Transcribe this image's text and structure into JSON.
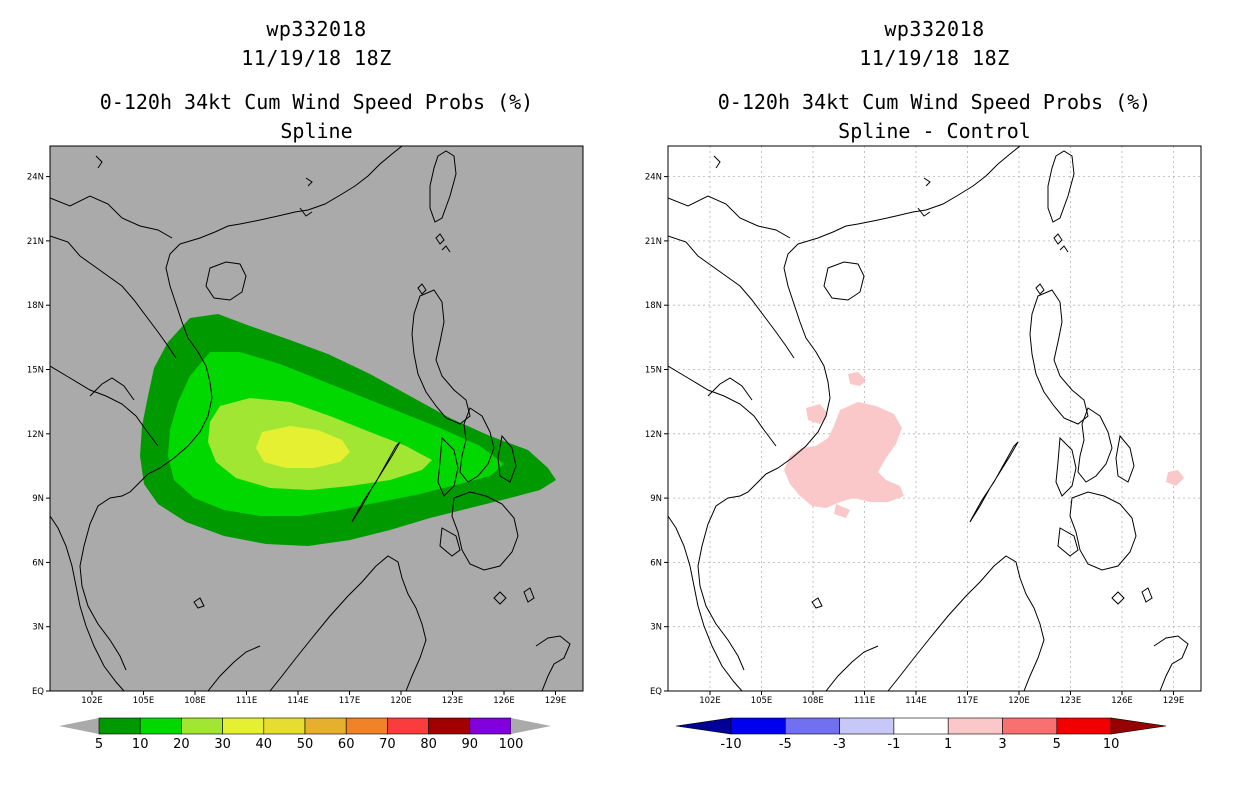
{
  "left": {
    "title_line1": "wp332018",
    "title_line2": "11/19/18 18Z",
    "subtitle_line1": "0-120h 34kt Cum Wind Speed Probs (%)",
    "subtitle_line2": "Spline",
    "legend_labels": [
      "5",
      "10",
      "20",
      "30",
      "40",
      "50",
      "60",
      "70",
      "80",
      "90",
      "100"
    ],
    "legend_colors": [
      "#009a00",
      "#00d800",
      "#a0e632",
      "#e6f032",
      "#e6dc32",
      "#e6af2d",
      "#f08228",
      "#fa3c3c",
      "#a00000",
      "#8200dc"
    ],
    "background_color": "#aaaaaa"
  },
  "right": {
    "title_line1": "wp332018",
    "title_line2": "11/19/18 18Z",
    "subtitle_line1": "0-120h 34kt Cum Wind Speed Probs (%)",
    "subtitle_line2": "Spline - Control",
    "legend_labels": [
      "-10",
      "-5",
      "-3",
      "-1",
      "1",
      "3",
      "5",
      "10"
    ],
    "legend_colors": [
      "#000096",
      "#0000f0",
      "#7070f0",
      "#c8c8f8",
      "#ffffff",
      "#fac8c8",
      "#f87070",
      "#f00000",
      "#960000"
    ],
    "anomaly_color": "#fac8c8"
  },
  "axes": {
    "x_ticks": [
      "102E",
      "105E",
      "108E",
      "111E",
      "114E",
      "117E",
      "120E",
      "123E",
      "126E",
      "129E"
    ],
    "y_ticks": [
      "EQ",
      "3N",
      "6N",
      "9N",
      "12N",
      "15N",
      "18N",
      "21N",
      "24N"
    ]
  }
}
